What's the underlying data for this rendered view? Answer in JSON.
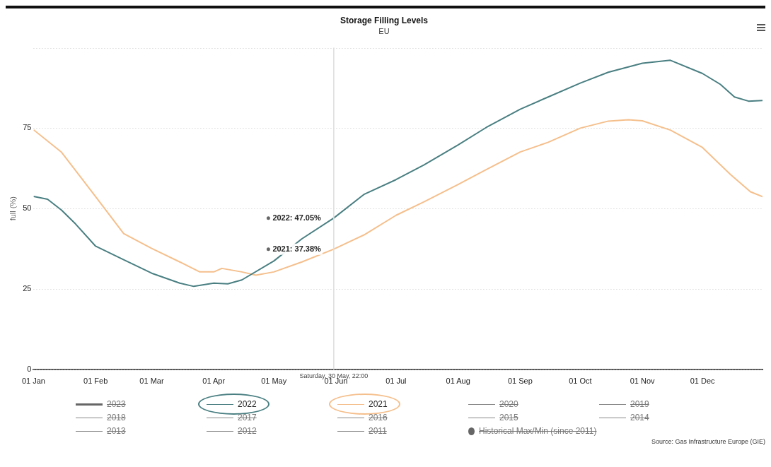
{
  "chart_data": {
    "type": "line",
    "title": "Storage Filling Levels",
    "subtitle": "EU",
    "ylabel": "full (%)",
    "xlim": [
      "--01-01",
      "--12-31"
    ],
    "xticks": [
      {
        "value": "--01-01",
        "label": "01 Jan"
      },
      {
        "value": "--02-01",
        "label": "01 Feb"
      },
      {
        "value": "--03-01",
        "label": "01 Mar"
      },
      {
        "value": "--04-01",
        "label": "01 Apr"
      },
      {
        "value": "--05-01",
        "label": "01 May"
      },
      {
        "value": "--06-01",
        "label": "01 Jun"
      },
      {
        "value": "--07-01",
        "label": "01 Jul"
      },
      {
        "value": "--08-01",
        "label": "01 Aug"
      },
      {
        "value": "--09-01",
        "label": "01 Sep"
      },
      {
        "value": "--10-01",
        "label": "01 Oct"
      },
      {
        "value": "--11-01",
        "label": "01 Nov"
      },
      {
        "value": "--12-01",
        "label": "01 Dec"
      }
    ],
    "ylim": [
      0,
      100
    ],
    "yticks": [
      0,
      25,
      50,
      75,
      {
        "value": 100,
        "label": null
      }
    ],
    "grid": "y",
    "legend": "bottom",
    "marker": "none",
    "line_style": "solid",
    "series": [
      {
        "name": "2023",
        "color": "#666666"
      },
      {
        "name": "2022",
        "color": "#4a7f82",
        "x": [
          "--01-01",
          "--01-08",
          "--01-15",
          "--01-22",
          "--02-01",
          "--02-15",
          "--03-01",
          "--03-15",
          "--03-22",
          "--04-01",
          "--04-08",
          "--04-15",
          "--05-01",
          "--05-15",
          "--05-30T22:00",
          "--06-15",
          "--07-01",
          "--07-15",
          "--08-01",
          "--08-15",
          "--09-01",
          "--09-15",
          "--10-01",
          "--10-15",
          "--11-01",
          "--11-15",
          "--12-01",
          "--12-10",
          "--12-17",
          "--12-24",
          "--12-31"
        ],
        "values": [
          53.8,
          52.9,
          49.5,
          45.2,
          38.3,
          34.1,
          29.9,
          26.8,
          25.8,
          26.8,
          26.6,
          27.8,
          33.7,
          40.6,
          47.05,
          54.4,
          59.0,
          63.6,
          69.8,
          75.2,
          80.9,
          84.7,
          89.0,
          92.4,
          95.2,
          96.1,
          92.0,
          88.6,
          84.7,
          83.4,
          83.6
        ]
      },
      {
        "name": "2021",
        "color": "#f5bf8c",
        "x": [
          "--01-01",
          "--01-15",
          "--02-01",
          "--02-15",
          "--03-01",
          "--03-15",
          "--03-25",
          "--04-01",
          "--04-05",
          "--04-15",
          "--04-22",
          "--05-01",
          "--05-15",
          "--05-30T22:00",
          "--06-15",
          "--07-01",
          "--07-15",
          "--08-01",
          "--08-15",
          "--09-01",
          "--09-15",
          "--10-01",
          "--10-15",
          "--10-25",
          "--11-01",
          "--11-15",
          "--12-01",
          "--12-15",
          "--12-25",
          "--12-31"
        ],
        "values": [
          74.5,
          67.5,
          53.7,
          42.2,
          37.6,
          33.4,
          30.3,
          30.3,
          31.4,
          30.3,
          29.3,
          30.3,
          33.4,
          37.38,
          41.8,
          47.9,
          52.1,
          57.5,
          62.1,
          67.6,
          70.6,
          75.0,
          77.2,
          77.6,
          77.3,
          74.4,
          69.0,
          60.6,
          55.2,
          53.7
        ]
      },
      {
        "name": "2020",
        "color": "#888888"
      },
      {
        "name": "2019",
        "color": "#888888"
      },
      {
        "name": "2018",
        "color": "#888888"
      },
      {
        "name": "2017",
        "color": "#888888"
      },
      {
        "name": "2016",
        "color": "#888888"
      },
      {
        "name": "2015",
        "color": "#888888"
      },
      {
        "name": "2014",
        "color": "#888888"
      },
      {
        "name": "2013",
        "color": "#888888"
      },
      {
        "name": "2012",
        "color": "#888888"
      },
      {
        "name": "2011",
        "color": "#888888"
      },
      {
        "name": "Historical Max/Min (since 2011)",
        "type": "scatter",
        "marker": "circle",
        "color": "#666666"
      }
    ],
    "ref_lines": [
      {
        "axis": "x",
        "value": "--05-30T22:00",
        "label": "Saturday, 30 May, 22:00",
        "color": "#dddddd"
      }
    ],
    "annotations": [
      {
        "text": "2022: 47.05%",
        "x": "--05-30T22:00",
        "y": 47.05
      },
      {
        "text": "2021: 37.38%",
        "x": "--05-30T22:00",
        "y": 37.38
      },
      "Source: Gas Infrastructure Europe (GIE)"
    ]
  }
}
